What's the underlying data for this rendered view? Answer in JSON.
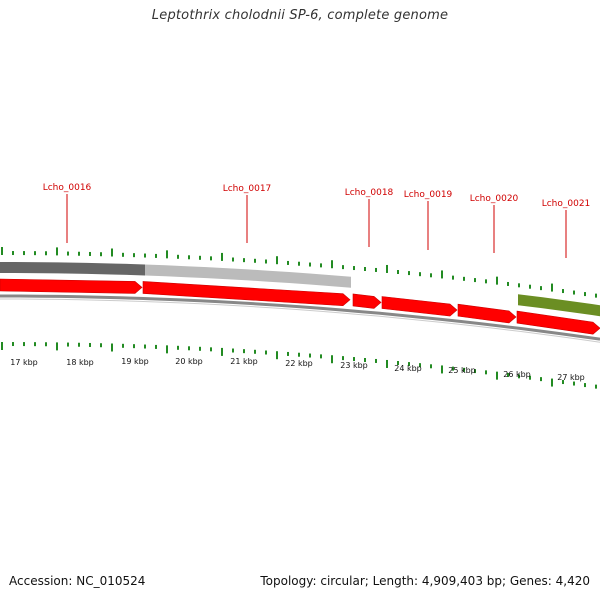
{
  "title": "Leptothrix cholodnii SP-6, complete genome",
  "accession_text": "Accession: NC_010524",
  "summary_text": "Topology: circular; Length: 4,909,403 bp; Genes: 4,420",
  "colors": {
    "gene_forward": "#ff0000",
    "gene_label": "#d00000",
    "tick": "#228b22",
    "band_dark": "#666666",
    "band_light": "#bbbbbb",
    "band_green": "#6b8e23",
    "backbone": "#888888"
  },
  "gene_labels": [
    "Lcho_0016",
    "Lcho_0017",
    "Lcho_0018",
    "Lcho_0019",
    "Lcho_0020",
    "Lcho_0021"
  ],
  "kbp_labels": [
    "17 kbp",
    "18 kbp",
    "19 kbp",
    "20 kbp",
    "21 kbp",
    "22 kbp",
    "23 kbp",
    "24 kbp",
    "25 kbp",
    "26 kbp",
    "27 kbp"
  ]
}
